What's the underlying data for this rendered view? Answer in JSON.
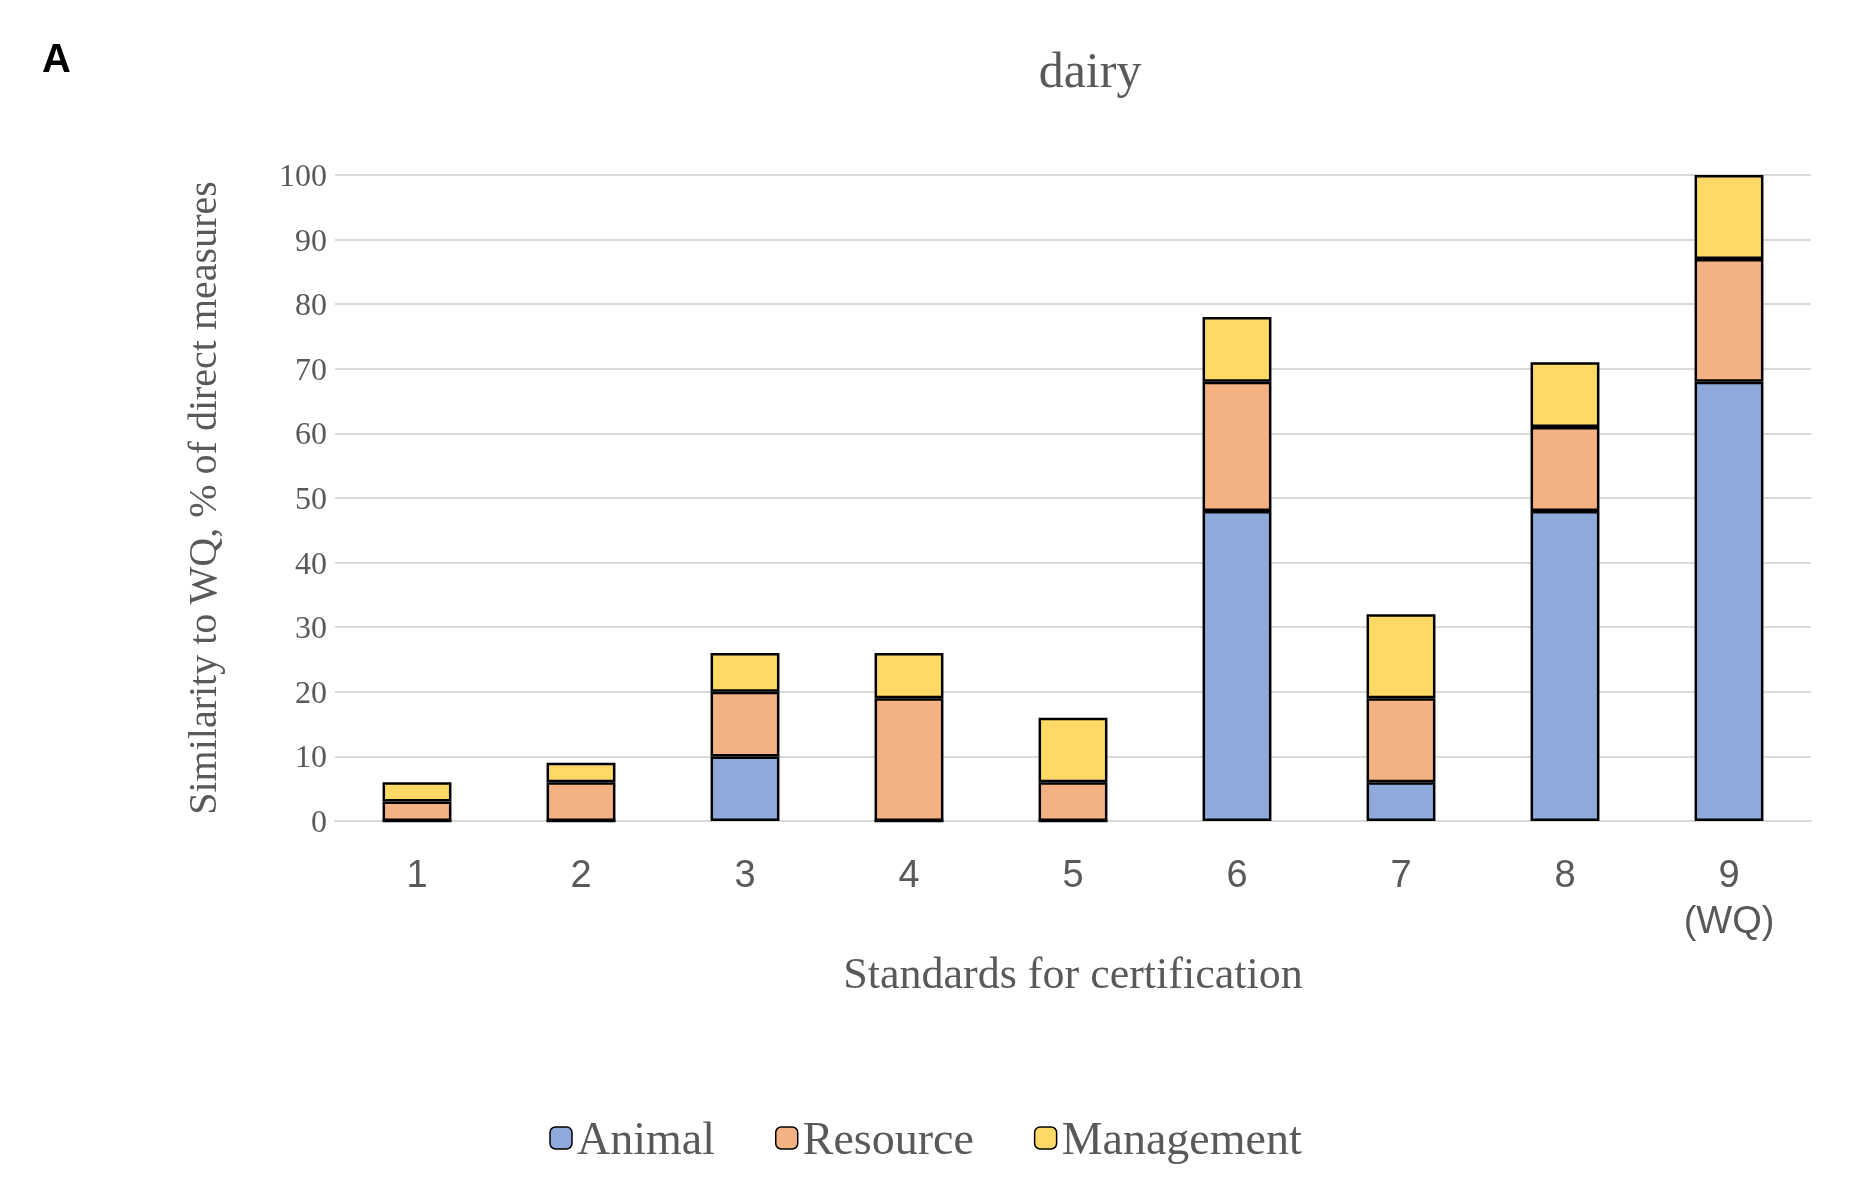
{
  "chart_data": {
    "type": "bar",
    "title": "dairy",
    "xlabel": "Standards for certification",
    "ylabel": "Similarity to WQ, % of direct measures",
    "annotations": [
      "A"
    ],
    "categories": [
      "1",
      "2",
      "3",
      "4",
      "5",
      "6",
      "7",
      "8",
      "9\n(WQ)"
    ],
    "series": [
      {
        "name": "Animal",
        "color": "#8eaadb",
        "values": [
          0,
          0,
          10,
          0,
          0,
          48,
          6,
          48,
          68
        ]
      },
      {
        "name": "Resource",
        "color": "#f4b183",
        "values": [
          3,
          6,
          10,
          19,
          6,
          20,
          13,
          13,
          19
        ]
      },
      {
        "name": "Management",
        "color": "#ffd966",
        "values": [
          3,
          3,
          6,
          7,
          10,
          10,
          13,
          10,
          13
        ]
      }
    ],
    "stacked": true,
    "ylim": [
      0,
      100
    ],
    "yticks": [
      0,
      10,
      20,
      30,
      40,
      50,
      60,
      70,
      80,
      90,
      100
    ],
    "grid": "y",
    "legend": "bottom"
  }
}
